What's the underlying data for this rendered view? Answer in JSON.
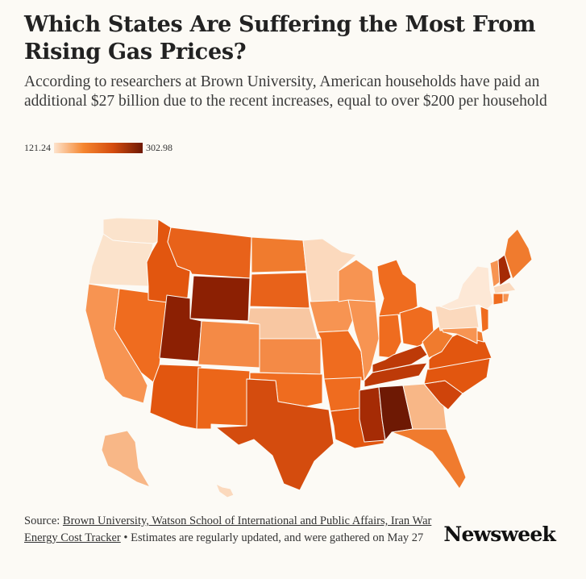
{
  "title": "Which States Are Suffering the Most From Rising Gas Prices?",
  "subtitle": "According to researchers at Brown University, American households have paid an additional $27 billion due to the recent increases, equal to over $200 per household",
  "legend": {
    "min": "121.24",
    "max": "302.98",
    "colors": [
      "#fde3cc",
      "#f5862f",
      "#d44c0e",
      "#6e1904"
    ]
  },
  "footer": {
    "source_prefix": "Source: ",
    "source_link": "Brown University, Watson School of International and Public Affairs, Iran War Energy Cost Tracker",
    "note": " • Estimates are regularly updated, and were gathered on May 27"
  },
  "brand": "Newsweek",
  "chart_data": {
    "type": "choropleth",
    "scale": {
      "min": 121.24,
      "max": 302.98
    },
    "states": [
      {
        "id": "WA",
        "fill": "#fbe3cc"
      },
      {
        "id": "OR",
        "fill": "#fbe3cc"
      },
      {
        "id": "CA",
        "fill": "#f79452"
      },
      {
        "id": "NV",
        "fill": "#ef6c1f"
      },
      {
        "id": "ID",
        "fill": "#e2560f"
      },
      {
        "id": "MT",
        "fill": "#e8621a"
      },
      {
        "id": "WY",
        "fill": "#8c2003"
      },
      {
        "id": "UT",
        "fill": "#8c2003"
      },
      {
        "id": "AZ",
        "fill": "#e2560f"
      },
      {
        "id": "CO",
        "fill": "#f48a46"
      },
      {
        "id": "NM",
        "fill": "#ec6619"
      },
      {
        "id": "ND",
        "fill": "#f07b2e"
      },
      {
        "id": "SD",
        "fill": "#e8621a"
      },
      {
        "id": "NE",
        "fill": "#f8c7a2"
      },
      {
        "id": "KS",
        "fill": "#f48a46"
      },
      {
        "id": "OK",
        "fill": "#ef6c1f"
      },
      {
        "id": "TX",
        "fill": "#d44c0e"
      },
      {
        "id": "MN",
        "fill": "#fbd9bd"
      },
      {
        "id": "IA",
        "fill": "#f79452"
      },
      {
        "id": "MO",
        "fill": "#ef6c1f"
      },
      {
        "id": "AR",
        "fill": "#ef6c1f"
      },
      {
        "id": "LA",
        "fill": "#e2560f"
      },
      {
        "id": "WI",
        "fill": "#f79452"
      },
      {
        "id": "IL",
        "fill": "#f79452"
      },
      {
        "id": "MI",
        "fill": "#ef6c1f"
      },
      {
        "id": "IN",
        "fill": "#ef6c1f"
      },
      {
        "id": "OH",
        "fill": "#ef6c1f"
      },
      {
        "id": "KY",
        "fill": "#bd3a08"
      },
      {
        "id": "TN",
        "fill": "#bd3a08"
      },
      {
        "id": "MS",
        "fill": "#a52b05"
      },
      {
        "id": "AL",
        "fill": "#6e1904"
      },
      {
        "id": "GA",
        "fill": "#f8b787"
      },
      {
        "id": "FL",
        "fill": "#f07b2e"
      },
      {
        "id": "SC",
        "fill": "#cf440b"
      },
      {
        "id": "NC",
        "fill": "#e2560f"
      },
      {
        "id": "VA",
        "fill": "#e2560f"
      },
      {
        "id": "WV",
        "fill": "#f07b2e"
      },
      {
        "id": "PA",
        "fill": "#fbd9bd"
      },
      {
        "id": "NY",
        "fill": "#fde8d6"
      },
      {
        "id": "VT",
        "fill": "#f79452"
      },
      {
        "id": "NH",
        "fill": "#a52b05"
      },
      {
        "id": "ME",
        "fill": "#f07b2e"
      },
      {
        "id": "MA",
        "fill": "#fbd9bd"
      },
      {
        "id": "CT",
        "fill": "#ef6c1f"
      },
      {
        "id": "RI",
        "fill": "#f79452"
      },
      {
        "id": "NJ",
        "fill": "#ef6c1f"
      },
      {
        "id": "DE",
        "fill": "#f07b2e"
      },
      {
        "id": "MD",
        "fill": "#f79452"
      },
      {
        "id": "AK",
        "fill": "#f8b787"
      },
      {
        "id": "HI",
        "fill": "#fbd9bd"
      }
    ]
  }
}
